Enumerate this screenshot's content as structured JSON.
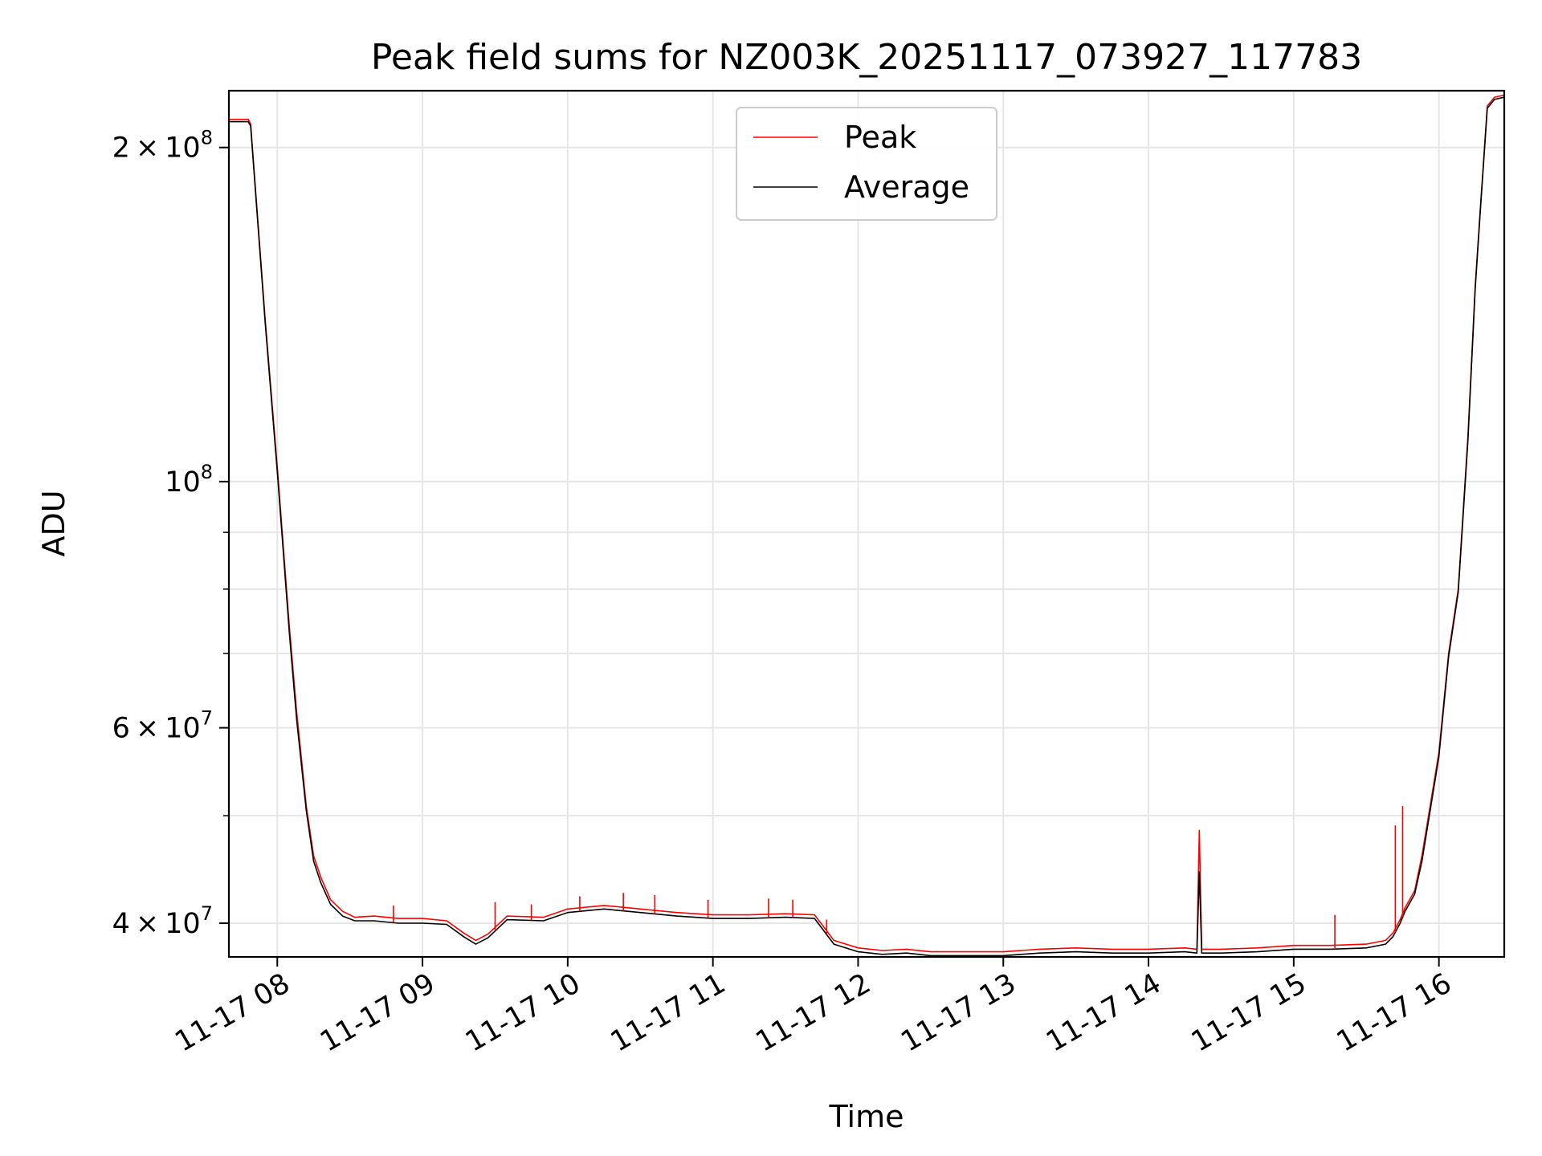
{
  "chart_data": {
    "type": "line",
    "title": "Peak field sums for NZ003K_20251117_073927_117783",
    "xlabel": "Time",
    "ylabel": "ADU",
    "yscale": "log",
    "grid": true,
    "legend_position": "upper center",
    "xlim": [
      "2025-11-17 07:40",
      "2025-11-17 16:27"
    ],
    "ylim": [
      37300000,
      225000000
    ],
    "x_ticks": [
      {
        "value": "2025-11-17 08:00",
        "label": "11-17 08"
      },
      {
        "value": "2025-11-17 09:00",
        "label": "11-17 09"
      },
      {
        "value": "2025-11-17 10:00",
        "label": "11-17 10"
      },
      {
        "value": "2025-11-17 11:00",
        "label": "11-17 11"
      },
      {
        "value": "2025-11-17 12:00",
        "label": "11-17 12"
      },
      {
        "value": "2025-11-17 13:00",
        "label": "11-17 13"
      },
      {
        "value": "2025-11-17 14:00",
        "label": "11-17 14"
      },
      {
        "value": "2025-11-17 15:00",
        "label": "11-17 15"
      },
      {
        "value": "2025-11-17 16:00",
        "label": "11-17 16"
      }
    ],
    "y_major_ticks": [
      {
        "value": 40000000,
        "mantissa": "4",
        "times": "×",
        "base": "10",
        "exponent": "7"
      },
      {
        "value": 60000000,
        "mantissa": "6",
        "times": "×",
        "base": "10",
        "exponent": "7"
      },
      {
        "value": 100000000,
        "mantissa": "",
        "times": "",
        "base": "10",
        "exponent": "8"
      },
      {
        "value": 200000000,
        "mantissa": "2",
        "times": "×",
        "base": "10",
        "exponent": "8"
      }
    ],
    "y_minor_ticks": [
      50000000,
      70000000,
      80000000,
      90000000
    ],
    "series": [
      {
        "name": "Peak",
        "color": "#ff0000",
        "x": [
          "2025-11-17 07:40",
          "2025-11-17 07:48",
          "2025-11-17 07:49",
          "2025-11-17 07:55",
          "2025-11-17 08:00",
          "2025-11-17 08:05",
          "2025-11-17 08:08",
          "2025-11-17 08:12",
          "2025-11-17 08:15",
          "2025-11-17 08:18",
          "2025-11-17 08:22",
          "2025-11-17 08:27",
          "2025-11-17 08:32",
          "2025-11-17 08:40",
          "2025-11-17 08:50",
          "2025-11-17 09:00",
          "2025-11-17 09:10",
          "2025-11-17 09:17",
          "2025-11-17 09:22",
          "2025-11-17 09:27",
          "2025-11-17 09:35",
          "2025-11-17 09:50",
          "2025-11-17 10:00",
          "2025-11-17 10:15",
          "2025-11-17 10:30",
          "2025-11-17 10:45",
          "2025-11-17 11:00",
          "2025-11-17 11:15",
          "2025-11-17 11:30",
          "2025-11-17 11:42",
          "2025-11-17 11:50",
          "2025-11-17 12:00",
          "2025-11-17 12:10",
          "2025-11-17 12:20",
          "2025-11-17 12:30",
          "2025-11-17 12:40",
          "2025-11-17 12:50",
          "2025-11-17 13:00",
          "2025-11-17 13:15",
          "2025-11-17 13:30",
          "2025-11-17 13:45",
          "2025-11-17 14:00",
          "2025-11-17 14:15",
          "2025-11-17 14:20",
          "2025-11-17 14:21",
          "2025-11-17 14:22",
          "2025-11-17 14:30",
          "2025-11-17 14:45",
          "2025-11-17 15:00",
          "2025-11-17 15:15",
          "2025-11-17 15:30",
          "2025-11-17 15:38",
          "2025-11-17 15:41",
          "2025-11-17 15:44",
          "2025-11-17 15:46",
          "2025-11-17 15:50",
          "2025-11-17 15:53",
          "2025-11-17 15:57",
          "2025-11-17 16:00",
          "2025-11-17 16:04",
          "2025-11-17 16:08",
          "2025-11-17 16:12",
          "2025-11-17 16:15",
          "2025-11-17 16:17",
          "2025-11-17 16:20",
          "2025-11-17 16:23",
          "2025-11-17 16:27"
        ],
        "y": [
          212000000,
          212000000,
          210000000,
          140000000,
          103000000,
          74000000,
          62000000,
          51000000,
          46000000,
          44000000,
          42000000,
          41000000,
          40500000,
          40600000,
          40400000,
          40400000,
          40200000,
          39200000,
          38600000,
          39100000,
          40600000,
          40500000,
          41200000,
          41500000,
          41200000,
          40900000,
          40700000,
          40700000,
          40800000,
          40700000,
          38600000,
          38000000,
          37800000,
          37900000,
          37700000,
          37700000,
          37700000,
          37700000,
          37900000,
          38000000,
          37900000,
          37900000,
          38000000,
          37900000,
          48500000,
          37900000,
          37900000,
          38000000,
          38200000,
          38200000,
          38300000,
          38600000,
          39200000,
          40300000,
          41300000,
          42800000,
          46000000,
          52000000,
          57000000,
          70000000,
          80000000,
          110000000,
          150000000,
          175000000,
          218000000,
          222000000,
          223000000
        ]
      },
      {
        "name": "Average",
        "color": "#000000",
        "x": [
          "2025-11-17 07:40",
          "2025-11-17 07:48",
          "2025-11-17 07:49",
          "2025-11-17 07:55",
          "2025-11-17 08:00",
          "2025-11-17 08:05",
          "2025-11-17 08:08",
          "2025-11-17 08:12",
          "2025-11-17 08:15",
          "2025-11-17 08:18",
          "2025-11-17 08:22",
          "2025-11-17 08:27",
          "2025-11-17 08:32",
          "2025-11-17 08:40",
          "2025-11-17 08:50",
          "2025-11-17 09:00",
          "2025-11-17 09:10",
          "2025-11-17 09:17",
          "2025-11-17 09:22",
          "2025-11-17 09:27",
          "2025-11-17 09:35",
          "2025-11-17 09:50",
          "2025-11-17 10:00",
          "2025-11-17 10:15",
          "2025-11-17 10:30",
          "2025-11-17 10:45",
          "2025-11-17 11:00",
          "2025-11-17 11:15",
          "2025-11-17 11:30",
          "2025-11-17 11:42",
          "2025-11-17 11:50",
          "2025-11-17 12:00",
          "2025-11-17 12:10",
          "2025-11-17 12:20",
          "2025-11-17 12:30",
          "2025-11-17 12:40",
          "2025-11-17 12:50",
          "2025-11-17 13:00",
          "2025-11-17 13:15",
          "2025-11-17 13:30",
          "2025-11-17 13:45",
          "2025-11-17 14:00",
          "2025-11-17 14:15",
          "2025-11-17 14:20",
          "2025-11-17 14:21",
          "2025-11-17 14:22",
          "2025-11-17 14:30",
          "2025-11-17 14:45",
          "2025-11-17 15:00",
          "2025-11-17 15:15",
          "2025-11-17 15:30",
          "2025-11-17 15:38",
          "2025-11-17 15:41",
          "2025-11-17 15:44",
          "2025-11-17 15:46",
          "2025-11-17 15:50",
          "2025-11-17 15:53",
          "2025-11-17 15:57",
          "2025-11-17 16:00",
          "2025-11-17 16:04",
          "2025-11-17 16:08",
          "2025-11-17 16:12",
          "2025-11-17 16:15",
          "2025-11-17 16:17",
          "2025-11-17 16:20",
          "2025-11-17 16:23",
          "2025-11-17 16:27"
        ],
        "y": [
          211000000,
          211000000,
          209000000,
          139000000,
          102000000,
          73000000,
          61000000,
          50500000,
          45500000,
          43500000,
          41600000,
          40600000,
          40200000,
          40200000,
          40000000,
          40000000,
          39900000,
          38900000,
          38300000,
          38800000,
          40300000,
          40200000,
          40900000,
          41200000,
          40900000,
          40600000,
          40400000,
          40400000,
          40500000,
          40400000,
          38300000,
          37700000,
          37500000,
          37600000,
          37400000,
          37400000,
          37400000,
          37400000,
          37600000,
          37700000,
          37600000,
          37600000,
          37700000,
          37600000,
          44500000,
          37600000,
          37600000,
          37700000,
          37900000,
          37900000,
          38000000,
          38300000,
          38900000,
          40000000,
          41000000,
          42500000,
          45500000,
          51500000,
          56500000,
          69500000,
          79500000,
          109000000,
          149000000,
          174000000,
          217000000,
          221000000,
          222000000
        ]
      }
    ],
    "peak_spikes": [
      {
        "x": "2025-11-17 08:48",
        "y": 41500000
      },
      {
        "x": "2025-11-17 09:30",
        "y": 41800000
      },
      {
        "x": "2025-11-17 09:45",
        "y": 41600000
      },
      {
        "x": "2025-11-17 10:05",
        "y": 42300000
      },
      {
        "x": "2025-11-17 10:23",
        "y": 42600000
      },
      {
        "x": "2025-11-17 10:36",
        "y": 42400000
      },
      {
        "x": "2025-11-17 10:58",
        "y": 42000000
      },
      {
        "x": "2025-11-17 11:23",
        "y": 42100000
      },
      {
        "x": "2025-11-17 11:33",
        "y": 42000000
      },
      {
        "x": "2025-11-17 11:47",
        "y": 40300000
      },
      {
        "x": "2025-11-17 15:17",
        "y": 40700000
      },
      {
        "x": "2025-11-17 15:42",
        "y": 49000000
      },
      {
        "x": "2025-11-17 15:45",
        "y": 51000000
      }
    ]
  }
}
